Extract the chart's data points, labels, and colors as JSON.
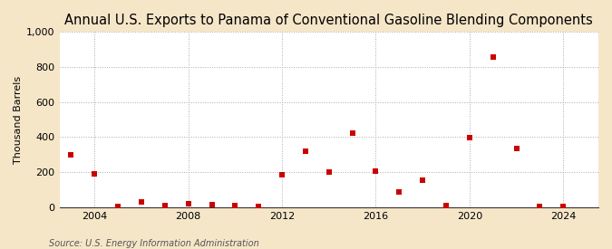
{
  "title": "Annual U.S. Exports to Panama of Conventional Gasoline Blending Components",
  "ylabel": "Thousand Barrels",
  "source": "Source: U.S. Energy Information Administration",
  "fig_background_color": "#f5e6c8",
  "plot_background_color": "#ffffff",
  "marker_color": "#cc0000",
  "years": [
    2003,
    2004,
    2005,
    2006,
    2007,
    2008,
    2009,
    2010,
    2011,
    2012,
    2013,
    2014,
    2015,
    2016,
    2017,
    2018,
    2019,
    2020,
    2021,
    2022,
    2023,
    2024
  ],
  "values": [
    300,
    190,
    5,
    28,
    10,
    20,
    15,
    10,
    5,
    182,
    318,
    200,
    420,
    205,
    88,
    155,
    8,
    395,
    858,
    335,
    5,
    5
  ],
  "xlim": [
    2002.5,
    2025.5
  ],
  "ylim": [
    0,
    1000
  ],
  "yticks": [
    0,
    200,
    400,
    600,
    800,
    1000
  ],
  "ytick_labels": [
    "0",
    "200",
    "400",
    "600",
    "800",
    "1,000"
  ],
  "xticks": [
    2004,
    2008,
    2012,
    2016,
    2020,
    2024
  ],
  "grid_color": "#aaaaaa",
  "title_fontsize": 10.5,
  "axis_label_fontsize": 8,
  "tick_fontsize": 8,
  "source_fontsize": 7
}
